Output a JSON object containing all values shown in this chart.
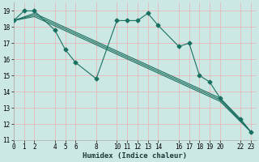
{
  "xlabel": "Humidex (Indice chaleur)",
  "background_color": "#cce8e4",
  "grid_color": "#e8b8b8",
  "line_color": "#1a7060",
  "series_main": {
    "x": [
      0,
      1,
      2,
      4,
      5,
      6,
      8,
      10,
      11,
      12,
      13,
      14,
      16,
      17,
      18,
      19,
      20,
      22,
      23
    ],
    "y": [
      18.4,
      19.0,
      19.0,
      17.8,
      16.6,
      15.8,
      14.8,
      18.4,
      18.4,
      18.4,
      18.85,
      18.1,
      16.8,
      17.0,
      15.0,
      14.6,
      13.6,
      12.3,
      11.5
    ]
  },
  "series_smooth": [
    {
      "x": [
        0,
        2,
        20,
        23
      ],
      "y": [
        18.4,
        18.85,
        13.6,
        11.5
      ]
    },
    {
      "x": [
        0,
        2,
        20,
        23
      ],
      "y": [
        18.4,
        18.75,
        13.5,
        11.5
      ]
    },
    {
      "x": [
        0,
        2,
        20,
        23
      ],
      "y": [
        18.4,
        18.65,
        13.4,
        11.5
      ]
    }
  ],
  "xlim": [
    0,
    23.5
  ],
  "ylim": [
    11,
    19.5
  ],
  "yticks": [
    11,
    12,
    13,
    14,
    15,
    16,
    17,
    18,
    19
  ],
  "xticks": [
    0,
    1,
    2,
    4,
    5,
    6,
    8,
    10,
    11,
    12,
    13,
    14,
    16,
    17,
    18,
    19,
    20,
    22,
    23
  ]
}
